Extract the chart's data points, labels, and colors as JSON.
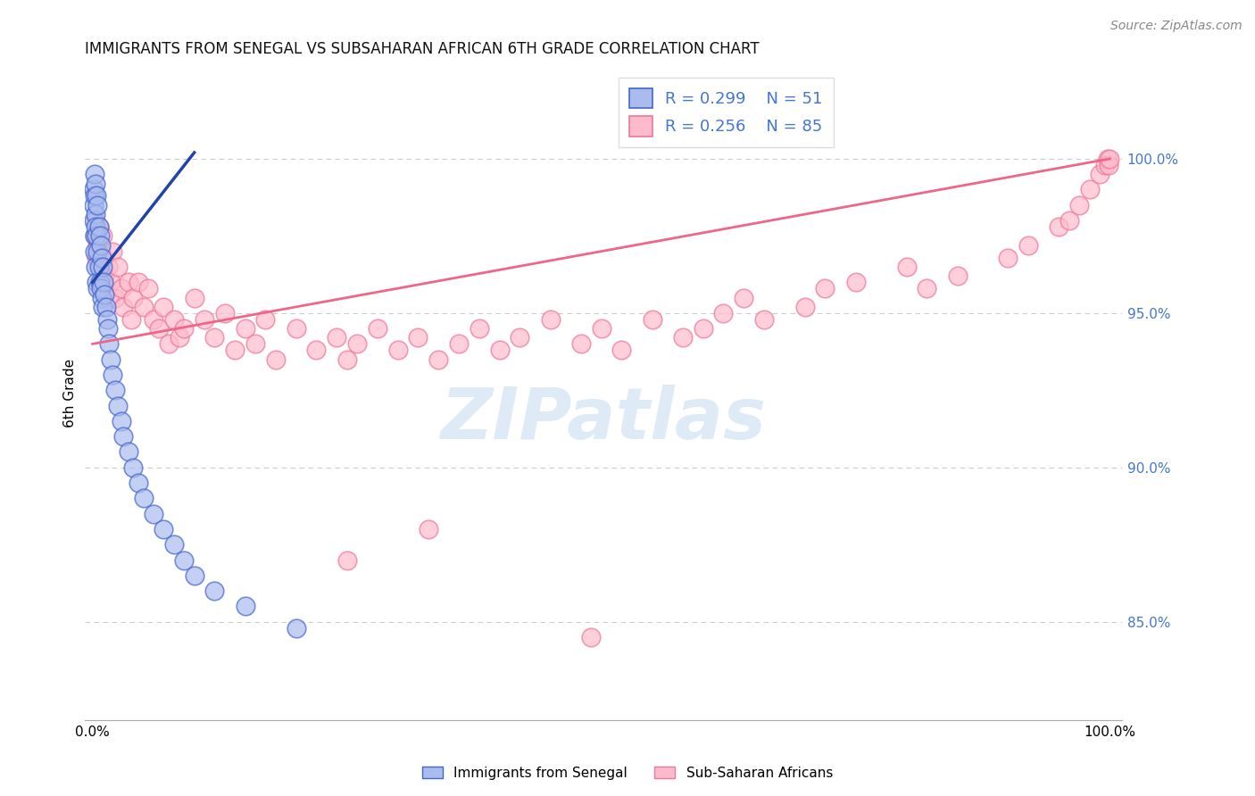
{
  "title": "IMMIGRANTS FROM SENEGAL VS SUBSAHARAN AFRICAN 6TH GRADE CORRELATION CHART",
  "source_text": "Source: ZipAtlas.com",
  "ylabel": "6th Grade",
  "ytick_labels": [
    "85.0%",
    "90.0%",
    "95.0%",
    "100.0%"
  ],
  "ytick_values": [
    0.85,
    0.9,
    0.95,
    1.0
  ],
  "ymin": 0.818,
  "ymax": 1.03,
  "xmin": -0.008,
  "xmax": 1.012,
  "legend_r_blue": "R = 0.299",
  "legend_n_blue": "N = 51",
  "legend_r_pink": "R = 0.256",
  "legend_n_pink": "N = 85",
  "color_blue_fill": "#AABBEE",
  "color_pink_fill": "#FFBBCC",
  "color_blue_edge": "#4466CC",
  "color_pink_edge": "#EE7799",
  "color_blue_line": "#2244AA",
  "color_pink_line": "#EE6688",
  "watermark_color": "#C8DFF0",
  "watermark": "ZIPatlas",
  "tick_color_right": "#4477CC",
  "grid_color": "#CCCCCC",
  "bottom_label_senegal": "Immigrants from Senegal",
  "bottom_label_subsaharan": "Sub-Saharan Africans",
  "blue_x": [
    0.001,
    0.001,
    0.001,
    0.002,
    0.002,
    0.002,
    0.002,
    0.003,
    0.003,
    0.003,
    0.003,
    0.004,
    0.004,
    0.004,
    0.005,
    0.005,
    0.005,
    0.006,
    0.006,
    0.007,
    0.007,
    0.008,
    0.008,
    0.009,
    0.009,
    0.01,
    0.01,
    0.011,
    0.012,
    0.013,
    0.014,
    0.015,
    0.016,
    0.018,
    0.02,
    0.022,
    0.025,
    0.028,
    0.03,
    0.035,
    0.04,
    0.045,
    0.05,
    0.06,
    0.07,
    0.08,
    0.09,
    0.1,
    0.12,
    0.15,
    0.2
  ],
  "blue_y": [
    0.99,
    0.985,
    0.98,
    0.995,
    0.988,
    0.975,
    0.97,
    0.992,
    0.982,
    0.978,
    0.965,
    0.988,
    0.975,
    0.96,
    0.985,
    0.97,
    0.958,
    0.978,
    0.965,
    0.975,
    0.96,
    0.972,
    0.958,
    0.968,
    0.955,
    0.965,
    0.952,
    0.96,
    0.956,
    0.952,
    0.948,
    0.945,
    0.94,
    0.935,
    0.93,
    0.925,
    0.92,
    0.915,
    0.91,
    0.905,
    0.9,
    0.895,
    0.89,
    0.885,
    0.88,
    0.875,
    0.87,
    0.865,
    0.86,
    0.855,
    0.848
  ],
  "pink_x": [
    0.002,
    0.003,
    0.004,
    0.005,
    0.006,
    0.007,
    0.008,
    0.009,
    0.01,
    0.011,
    0.012,
    0.013,
    0.015,
    0.016,
    0.018,
    0.02,
    0.022,
    0.025,
    0.028,
    0.03,
    0.035,
    0.038,
    0.04,
    0.045,
    0.05,
    0.055,
    0.06,
    0.065,
    0.07,
    0.075,
    0.08,
    0.085,
    0.09,
    0.1,
    0.11,
    0.12,
    0.13,
    0.14,
    0.15,
    0.16,
    0.17,
    0.18,
    0.2,
    0.22,
    0.24,
    0.25,
    0.26,
    0.28,
    0.3,
    0.32,
    0.34,
    0.36,
    0.38,
    0.4,
    0.42,
    0.45,
    0.48,
    0.5,
    0.52,
    0.55,
    0.58,
    0.6,
    0.62,
    0.64,
    0.66,
    0.7,
    0.72,
    0.75,
    0.8,
    0.82,
    0.85,
    0.9,
    0.92,
    0.95,
    0.96,
    0.97,
    0.98,
    0.99,
    0.995,
    0.998,
    0.999,
    1.0,
    0.25,
    0.33,
    0.49
  ],
  "pink_y": [
    0.975,
    0.98,
    0.968,
    0.972,
    0.978,
    0.965,
    0.97,
    0.96,
    0.975,
    0.968,
    0.962,
    0.958,
    0.965,
    0.955,
    0.96,
    0.97,
    0.955,
    0.965,
    0.958,
    0.952,
    0.96,
    0.948,
    0.955,
    0.96,
    0.952,
    0.958,
    0.948,
    0.945,
    0.952,
    0.94,
    0.948,
    0.942,
    0.945,
    0.955,
    0.948,
    0.942,
    0.95,
    0.938,
    0.945,
    0.94,
    0.948,
    0.935,
    0.945,
    0.938,
    0.942,
    0.935,
    0.94,
    0.945,
    0.938,
    0.942,
    0.935,
    0.94,
    0.945,
    0.938,
    0.942,
    0.948,
    0.94,
    0.945,
    0.938,
    0.948,
    0.942,
    0.945,
    0.95,
    0.955,
    0.948,
    0.952,
    0.958,
    0.96,
    0.965,
    0.958,
    0.962,
    0.968,
    0.972,
    0.978,
    0.98,
    0.985,
    0.99,
    0.995,
    0.998,
    1.0,
    0.998,
    1.0,
    0.87,
    0.88,
    0.845
  ],
  "blue_line": [
    [
      0.0,
      0.1
    ],
    [
      0.96,
      1.002
    ]
  ],
  "pink_line": [
    [
      0.0,
      1.0
    ],
    [
      0.94,
      1.0
    ]
  ]
}
